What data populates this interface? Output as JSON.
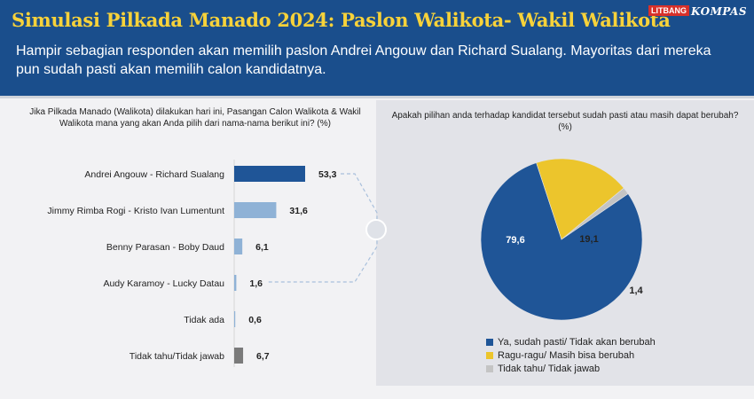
{
  "header": {
    "title": "Simulasi Pilkada Manado 2024: Paslon Walikota- Wakil Walikota",
    "subtitle": "Hampir sebagian responden akan memilih paslon Andrei Angouw dan Richard Sualang. Mayoritas dari mereka pun sudah pasti akan memilih calon kandidatnya.",
    "brand_litbang": "LITBANG",
    "brand_kompas": "KOMPAS"
  },
  "colors": {
    "header_bg": "#1a4e8c",
    "title": "#f7d23a",
    "bar_dark": "#1f5597",
    "bar_light": "#8fb2d6",
    "bar_gray": "#7a7a7a",
    "pie_yes": "#1f5597",
    "pie_unsure": "#ecc52c",
    "pie_unknown": "#c4c4c4"
  },
  "chart_data": [
    {
      "type": "bar",
      "orientation": "horizontal",
      "title": "Jika Pilkada Manado (Walikota) dilakukan hari ini, Pasangan Calon Walikota & Wakil Walikota mana yang akan Anda pilih dari nama-nama berikut ini? (%)",
      "categories": [
        "Andrei Angouw - Richard Sualang",
        "Jimmy Rimba Rogi - Kristo Ivan Lumentunt",
        "Benny Parasan - Boby Daud",
        "Audy Karamoy - Lucky Datau",
        "Tidak ada",
        "Tidak tahu/Tidak jawab"
      ],
      "values": [
        53.3,
        31.6,
        6.1,
        1.6,
        0.6,
        6.7
      ],
      "value_labels": [
        "53,3",
        "31,6",
        "6,1",
        "1,6",
        "0,6",
        "6,7"
      ],
      "bar_colors": [
        "#1f5597",
        "#8fb2d6",
        "#8fb2d6",
        "#8fb2d6",
        "#8fb2d6",
        "#7a7a7a"
      ]
    },
    {
      "type": "pie",
      "title": "Apakah pilihan anda terhadap kandidat tersebut sudah pasti atau masih dapat berubah? (%)",
      "labels": [
        "Ya, sudah pasti/ Tidak akan berubah",
        "Ragu-ragu/ Masih bisa berubah",
        "Tidak tahu/ Tidak jawab"
      ],
      "values": [
        79.6,
        19.1,
        1.4
      ],
      "value_labels": [
        "79,6",
        "19,1",
        "1,4"
      ],
      "colors": [
        "#1f5597",
        "#ecc52c",
        "#c4c4c4"
      ]
    }
  ]
}
